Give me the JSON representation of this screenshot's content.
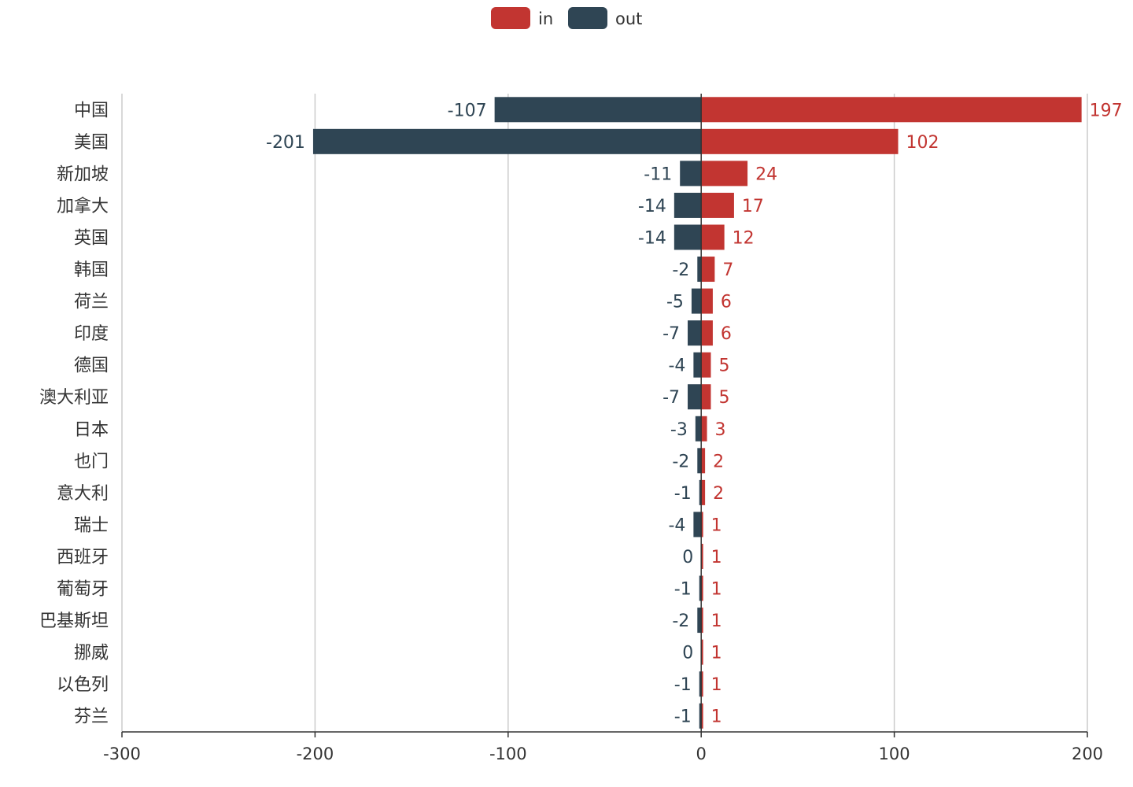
{
  "chart_data": {
    "type": "bar",
    "orientation": "horizontal",
    "stacked": true,
    "categories": [
      "中国",
      "美国",
      "新加坡",
      "加拿大",
      "英国",
      "韩国",
      "荷兰",
      "印度",
      "德国",
      "澳大利亚",
      "日本",
      "也门",
      "意大利",
      "瑞士",
      "西班牙",
      "葡萄牙",
      "巴基斯坦",
      "挪威",
      "以色列",
      "芬兰"
    ],
    "series": [
      {
        "name": "in",
        "color": "#c23531",
        "values": [
          197,
          102,
          24,
          17,
          12,
          7,
          6,
          6,
          5,
          5,
          3,
          2,
          2,
          1,
          1,
          1,
          1,
          1,
          1,
          1
        ]
      },
      {
        "name": "out",
        "color": "#2f4554",
        "values": [
          -107,
          -201,
          -11,
          -14,
          -14,
          -2,
          -5,
          -7,
          -4,
          -7,
          -3,
          -2,
          -1,
          -4,
          0,
          -1,
          -2,
          0,
          -1,
          -1
        ]
      }
    ],
    "xlim": [
      -300,
      200
    ],
    "xticks": [
      "-300",
      "-200",
      "-100",
      "0",
      "100",
      "200"
    ],
    "grid": true,
    "legend_position": "top-center",
    "title": "",
    "xlabel": "",
    "ylabel": ""
  }
}
